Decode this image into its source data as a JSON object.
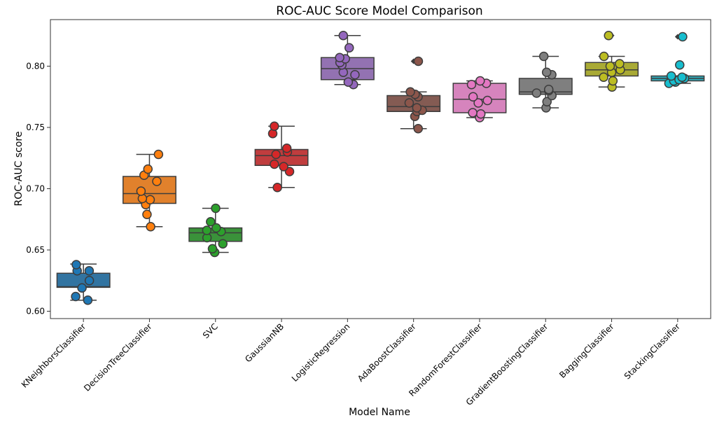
{
  "chart_data": {
    "type": "box",
    "title": "ROC-AUC Score Model Comparison",
    "xlabel": "Model Name",
    "ylabel": "ROC-AUC score",
    "ylim": [
      0.594,
      0.838
    ],
    "yticks": [
      "0.60",
      "0.65",
      "0.70",
      "0.75",
      "0.80"
    ],
    "grid": false,
    "legend": "none",
    "categories": [
      "KNeighborsClassifier",
      "DecisionTreeClassifier",
      "SVC",
      "GaussianNB",
      "LogisticRegression",
      "AdaBoostClassifier",
      "RandomForestClassifier",
      "GradientBoostingClassifier",
      "BaggingClassifier",
      "StackingClassifier"
    ],
    "colors": [
      "#1f77b4",
      "#ff7f0e",
      "#2ca02c",
      "#d62728",
      "#9467bd",
      "#8c564b",
      "#e377c2",
      "#7f7f7f",
      "#bcbd22",
      "#17becf"
    ],
    "box_colors": [
      "#3274a1",
      "#e1812c",
      "#3a923a",
      "#c03d3e",
      "#9372b2",
      "#845b53",
      "#d684bd",
      "#7f7f7f",
      "#a9aa35",
      "#2eaab8"
    ],
    "boxes": [
      {
        "whisker_low": 0.609,
        "q1": 0.6195,
        "median": 0.62,
        "q3": 0.631,
        "whisker_high": 0.6385,
        "fliers": []
      },
      {
        "whisker_low": 0.669,
        "q1": 0.688,
        "median": 0.696,
        "q3": 0.71,
        "whisker_high": 0.728,
        "fliers": []
      },
      {
        "whisker_low": 0.648,
        "q1": 0.657,
        "median": 0.664,
        "q3": 0.668,
        "whisker_high": 0.684,
        "fliers": []
      },
      {
        "whisker_low": 0.701,
        "q1": 0.719,
        "median": 0.727,
        "q3": 0.732,
        "whisker_high": 0.751,
        "fliers": []
      },
      {
        "whisker_low": 0.785,
        "q1": 0.789,
        "median": 0.798,
        "q3": 0.807,
        "whisker_high": 0.825,
        "fliers": []
      },
      {
        "whisker_low": 0.749,
        "q1": 0.763,
        "median": 0.767,
        "q3": 0.776,
        "whisker_high": 0.779,
        "fliers": [
          0.804
        ]
      },
      {
        "whisker_low": 0.758,
        "q1": 0.762,
        "median": 0.773,
        "q3": 0.786,
        "whisker_high": 0.788,
        "fliers": []
      },
      {
        "whisker_low": 0.766,
        "q1": 0.777,
        "median": 0.779,
        "q3": 0.79,
        "whisker_high": 0.808,
        "fliers": []
      },
      {
        "whisker_low": 0.783,
        "q1": 0.792,
        "median": 0.797,
        "q3": 0.803,
        "whisker_high": 0.808,
        "fliers": [
          0.825
        ]
      },
      {
        "whisker_low": 0.786,
        "q1": 0.788,
        "median": 0.79,
        "q3": 0.792,
        "whisker_high": 0.792,
        "fliers": [
          0.801,
          0.824
        ]
      }
    ],
    "series": [
      {
        "category": "KNeighborsClassifier",
        "points": [
          0.609,
          0.612,
          0.619,
          0.625,
          0.633,
          0.633,
          0.638
        ]
      },
      {
        "category": "DecisionTreeClassifier",
        "points": [
          0.669,
          0.679,
          0.687,
          0.691,
          0.692,
          0.698,
          0.706,
          0.711,
          0.716,
          0.728
        ]
      },
      {
        "category": "SVC",
        "points": [
          0.648,
          0.651,
          0.655,
          0.66,
          0.665,
          0.666,
          0.668,
          0.673,
          0.684
        ]
      },
      {
        "category": "GaussianNB",
        "points": [
          0.701,
          0.714,
          0.718,
          0.72,
          0.728,
          0.73,
          0.733,
          0.745,
          0.751
        ]
      },
      {
        "category": "LogisticRegression",
        "points": [
          0.785,
          0.787,
          0.793,
          0.795,
          0.801,
          0.803,
          0.806,
          0.807,
          0.815,
          0.825
        ]
      },
      {
        "category": "AdaBoostClassifier",
        "points": [
          0.749,
          0.759,
          0.763,
          0.764,
          0.766,
          0.77,
          0.775,
          0.777,
          0.779,
          0.804
        ]
      },
      {
        "category": "RandomForestClassifier",
        "points": [
          0.758,
          0.761,
          0.762,
          0.77,
          0.772,
          0.775,
          0.785,
          0.786,
          0.788
        ]
      },
      {
        "category": "GradientBoostingClassifier",
        "points": [
          0.766,
          0.771,
          0.776,
          0.778,
          0.78,
          0.781,
          0.793,
          0.795,
          0.808
        ]
      },
      {
        "category": "BaggingClassifier",
        "points": [
          0.783,
          0.788,
          0.791,
          0.795,
          0.797,
          0.8,
          0.802,
          0.808,
          0.825
        ]
      },
      {
        "category": "StackingClassifier",
        "points": [
          0.786,
          0.787,
          0.788,
          0.789,
          0.79,
          0.791,
          0.792,
          0.801,
          0.824
        ]
      }
    ]
  }
}
